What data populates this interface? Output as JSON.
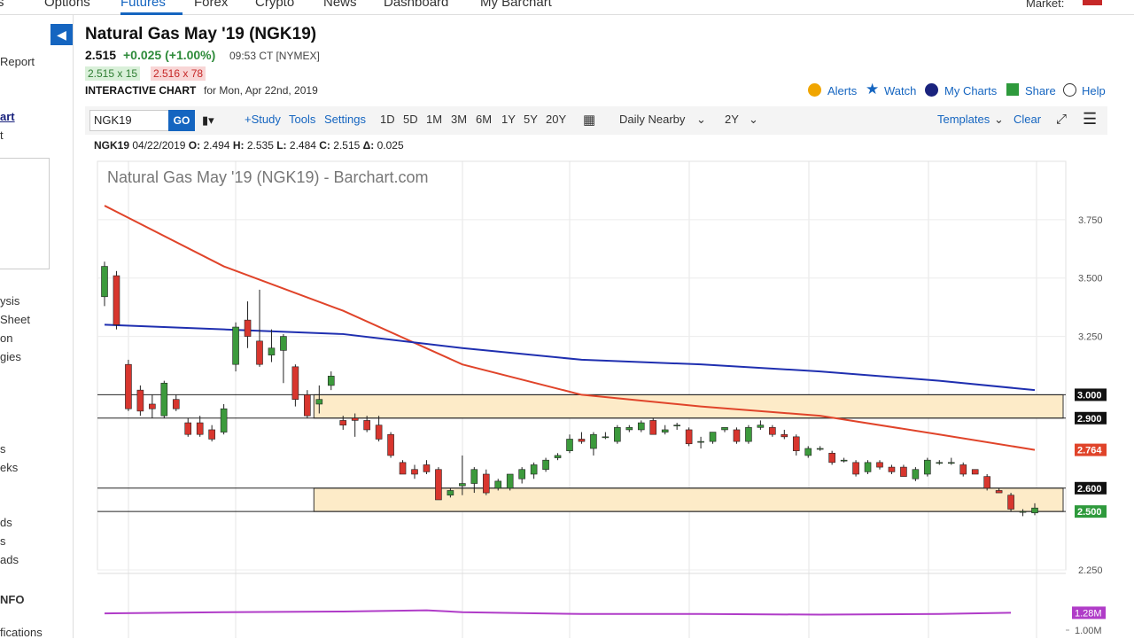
{
  "nav": {
    "items": [
      "rs",
      "Options",
      "Futures",
      "Forex",
      "Crypto",
      "News",
      "Dashboard",
      "My Barchart"
    ],
    "market": "Market:"
  },
  "sidebar": {
    "items": [
      "Report",
      "art",
      "t",
      "ysis",
      " Sheet",
      "on",
      "gies",
      "s",
      "eks",
      "ds",
      "s",
      "ads",
      "NFO",
      "fications"
    ]
  },
  "header": {
    "title": "Natural Gas May '19 (NGK19)",
    "last": "2.515",
    "change": "+0.025 (+1.00%)",
    "time": "09:53 CT [NYMEX]",
    "bid": "2.515 x 15",
    "ask": "2.516 x 78",
    "chart_label": "INTERACTIVE CHART",
    "date": "for Mon, Apr 22nd, 2019",
    "actions": [
      "Alerts",
      "Watch",
      "My Charts",
      "Share",
      "Help"
    ]
  },
  "toolbar": {
    "symbol": "NGK19",
    "go": "GO",
    "study": "+Study",
    "tools": "Tools",
    "settings": "Settings",
    "periods": [
      "1D",
      "5D",
      "1M",
      "3M",
      "6M",
      "1Y",
      "5Y",
      "20Y"
    ],
    "aggregation": "Daily Nearby",
    "range": "2Y",
    "templates": "Templates",
    "clear": "Clear"
  },
  "info": {
    "symbol": "NGK19",
    "date": "04/22/2019",
    "o_label": "O:",
    "open": 2.494,
    "h_label": "H:",
    "high": 2.535,
    "l_label": "L:",
    "low": 2.484,
    "c_label": "C:",
    "close": 2.515,
    "d_label": "Δ:",
    "delta": 0.025
  },
  "chart_data": {
    "type": "candlestick",
    "title": "Natural Gas May '19 (NGK19) - Barchart.com",
    "up_color": "#3c9a3c",
    "down_color": "#d8362e",
    "open": [
      3.42,
      3.51,
      3.13,
      3.02,
      2.96,
      2.91,
      2.98,
      2.88,
      2.88,
      2.85,
      2.84,
      3.13,
      3.32,
      3.23,
      3.17,
      3.19,
      3.12,
      3.0,
      2.96,
      3.04,
      2.89,
      2.9,
      2.89,
      2.87,
      2.83,
      2.71,
      2.68,
      2.7,
      2.68,
      2.57,
      2.61,
      2.62,
      2.66,
      2.6,
      2.6,
      2.64,
      2.66,
      2.68,
      2.73,
      2.76,
      2.81,
      2.77,
      2.82,
      2.8,
      2.85,
      2.85,
      2.89,
      2.84,
      2.87,
      2.85,
      2.8,
      2.8,
      2.85,
      2.85,
      2.8,
      2.86,
      2.86,
      2.83,
      2.82,
      2.74,
      2.77,
      2.75,
      2.72,
      2.71,
      2.67,
      2.71,
      2.69,
      2.69,
      2.64,
      2.66,
      2.71,
      2.71,
      2.7,
      2.68,
      2.65,
      2.59,
      2.57,
      2.5,
      2.494
    ],
    "high": [
      3.57,
      3.53,
      3.15,
      3.04,
      3.0,
      3.06,
      3.0,
      2.9,
      2.91,
      2.87,
      2.96,
      3.31,
      3.4,
      3.45,
      3.28,
      3.26,
      3.13,
      3.02,
      3.04,
      3.1,
      2.91,
      2.92,
      2.91,
      2.91,
      2.84,
      2.72,
      2.7,
      2.72,
      2.69,
      2.6,
      2.74,
      2.69,
      2.68,
      2.64,
      2.66,
      2.69,
      2.71,
      2.73,
      2.75,
      2.83,
      2.84,
      2.84,
      2.84,
      2.87,
      2.87,
      2.89,
      2.9,
      2.87,
      2.88,
      2.86,
      2.82,
      2.84,
      2.86,
      2.86,
      2.87,
      2.89,
      2.87,
      2.85,
      2.83,
      2.78,
      2.78,
      2.76,
      2.73,
      2.72,
      2.72,
      2.72,
      2.7,
      2.7,
      2.69,
      2.73,
      2.72,
      2.73,
      2.71,
      2.68,
      2.66,
      2.6,
      2.58,
      2.51,
      2.535
    ],
    "low": [
      3.38,
      3.28,
      2.93,
      2.91,
      2.9,
      2.9,
      2.93,
      2.82,
      2.82,
      2.8,
      2.83,
      3.1,
      3.2,
      3.12,
      3.14,
      3.05,
      2.95,
      2.9,
      2.92,
      3.02,
      2.85,
      2.82,
      2.84,
      2.8,
      2.73,
      2.66,
      2.64,
      2.66,
      2.55,
      2.56,
      2.57,
      2.58,
      2.57,
      2.59,
      2.59,
      2.62,
      2.64,
      2.67,
      2.72,
      2.75,
      2.79,
      2.74,
      2.81,
      2.79,
      2.84,
      2.84,
      2.83,
      2.83,
      2.85,
      2.78,
      2.77,
      2.79,
      2.84,
      2.79,
      2.79,
      2.85,
      2.82,
      2.81,
      2.74,
      2.73,
      2.76,
      2.7,
      2.71,
      2.65,
      2.66,
      2.68,
      2.66,
      2.65,
      2.63,
      2.65,
      2.7,
      2.7,
      2.65,
      2.66,
      2.59,
      2.58,
      2.5,
      2.48,
      2.484
    ],
    "close": [
      3.55,
      3.3,
      2.94,
      2.93,
      2.94,
      3.05,
      2.94,
      2.83,
      2.83,
      2.81,
      2.94,
      3.29,
      3.25,
      3.13,
      3.2,
      3.25,
      2.98,
      2.91,
      2.98,
      3.08,
      2.87,
      2.89,
      2.85,
      2.81,
      2.74,
      2.66,
      2.66,
      2.67,
      2.55,
      2.59,
      2.62,
      2.68,
      2.58,
      2.63,
      2.66,
      2.68,
      2.7,
      2.72,
      2.74,
      2.81,
      2.8,
      2.83,
      2.82,
      2.86,
      2.86,
      2.88,
      2.83,
      2.85,
      2.87,
      2.79,
      2.8,
      2.84,
      2.86,
      2.8,
      2.86,
      2.87,
      2.83,
      2.82,
      2.76,
      2.77,
      2.77,
      2.71,
      2.72,
      2.66,
      2.71,
      2.69,
      2.67,
      2.65,
      2.68,
      2.72,
      2.71,
      2.71,
      2.66,
      2.66,
      2.6,
      2.58,
      2.51,
      2.5,
      2.515
    ],
    "ylim": [
      2.25,
      4.0
    ],
    "yticks": [
      {
        "value": 3.75,
        "label": "3.750"
      },
      {
        "value": 3.5,
        "label": "3.500"
      },
      {
        "value": 3.25,
        "label": "3.250"
      },
      {
        "value": 2.25,
        "label": "2.250"
      }
    ],
    "moving_averages": [
      {
        "color": "#e0442a",
        "x": [
          0,
          10,
          20,
          30,
          40,
          50,
          60,
          70,
          78
        ],
        "values": [
          3.81,
          3.55,
          3.36,
          3.13,
          3.0,
          2.95,
          2.91,
          2.83,
          2.764
        ]
      },
      {
        "color": "#1f2fb0",
        "x": [
          0,
          10,
          20,
          30,
          40,
          50,
          60,
          70,
          78
        ],
        "values": [
          3.3,
          3.28,
          3.26,
          3.2,
          3.15,
          3.13,
          3.1,
          3.06,
          3.02
        ]
      }
    ],
    "zones": [
      {
        "start": 18,
        "from": 2.9,
        "to": 3.0
      },
      {
        "start": 18,
        "from": 2.5,
        "to": 2.6
      }
    ],
    "levels": [
      {
        "value": 3.0,
        "label": "3.000",
        "color": "#111111",
        "line": true
      },
      {
        "value": 2.9,
        "label": "2.900",
        "color": "#111111",
        "line": true
      },
      {
        "value": 2.764,
        "label": "2.764",
        "color": "#e0442a",
        "line": false
      },
      {
        "value": 2.6,
        "label": "2.600",
        "color": "#111111",
        "line": true
      },
      {
        "value": 2.5,
        "label": "2.500",
        "color": "#2e9a3c",
        "line": true
      }
    ],
    "volume": {
      "color": "#b03cc8",
      "ylim": [
        900000,
        1900000
      ],
      "yticks": [
        {
          "value": 1000000,
          "label": "1.00M"
        }
      ],
      "x": [
        0,
        10,
        20,
        27,
        30,
        40,
        50,
        60,
        70,
        76
      ],
      "values": [
        1270000,
        1290000,
        1300000,
        1320000,
        1290000,
        1260000,
        1260000,
        1250000,
        1260000,
        1280000
      ],
      "value_label": "1.28M"
    }
  }
}
